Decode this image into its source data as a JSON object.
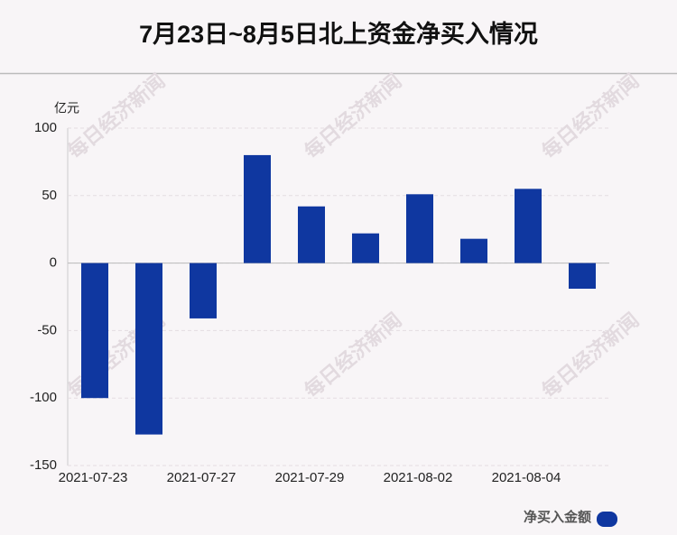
{
  "chart_data": {
    "type": "bar",
    "title": "7月23日~8月5日北上资金净买入情况",
    "y_unit": "亿元",
    "categories": [
      "2021-07-23",
      null,
      "2021-07-27",
      null,
      "2021-07-29",
      null,
      "2021-08-02",
      null,
      "2021-08-04",
      null
    ],
    "series": [
      {
        "name": "净买入金额",
        "color": "#0f37a0",
        "values": [
          -100,
          -127,
          -41,
          80,
          42,
          22,
          51,
          18,
          55,
          -19
        ]
      }
    ],
    "ylim": [
      -150,
      100
    ],
    "yticks": [
      -150,
      -100,
      -50,
      0,
      50,
      100
    ],
    "grid": true,
    "legend": "bottom-right",
    "watermark": "每日经济新闻"
  }
}
